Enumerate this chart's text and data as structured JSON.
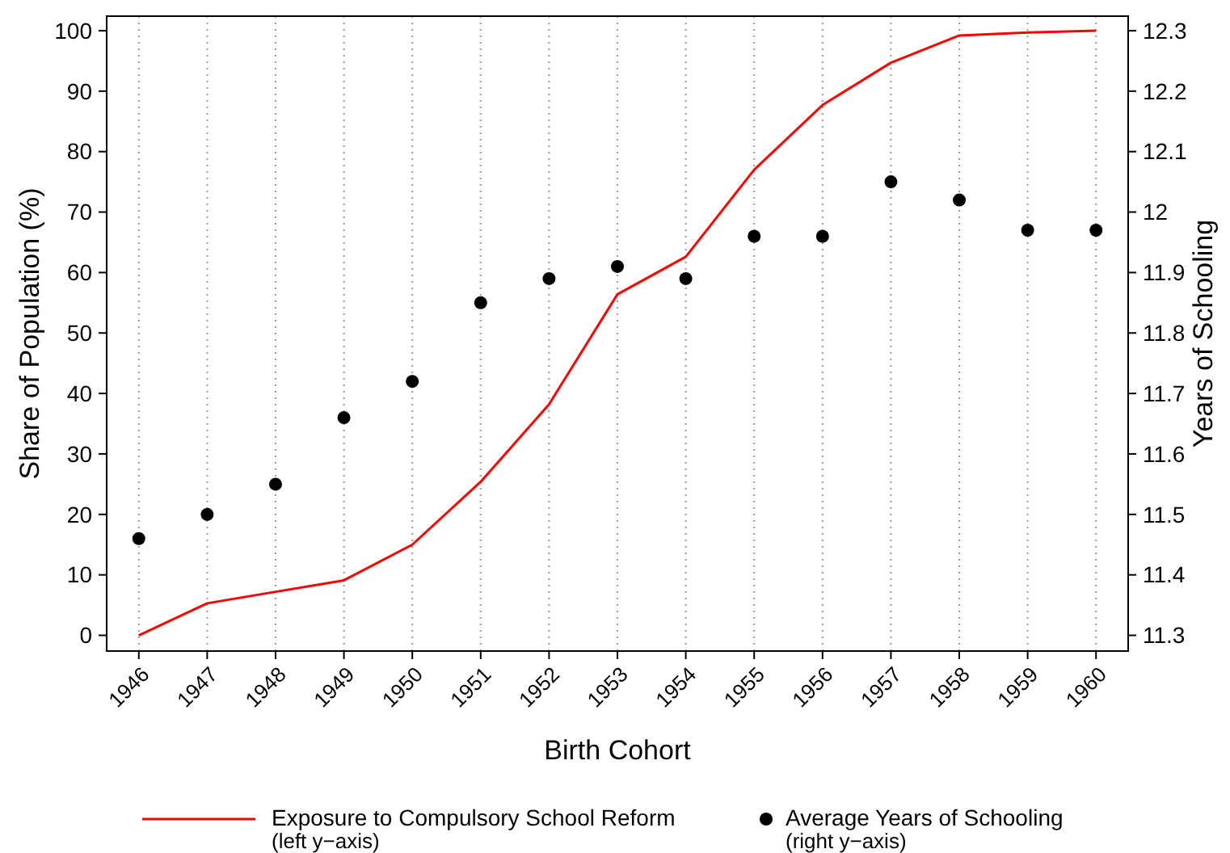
{
  "chart_data": {
    "type": "line",
    "xlabel": "Birth Cohort",
    "ylabel": "Share of Population (%)",
    "y2label": "Years of Schooling",
    "categories": [
      "1946",
      "1947",
      "1948",
      "1949",
      "1950",
      "1951",
      "1952",
      "1953",
      "1954",
      "1955",
      "1956",
      "1957",
      "1958",
      "1959",
      "1960"
    ],
    "series": [
      {
        "name": "Exposure to Compulsory School Reform\n(left y−axis)",
        "color": "#ff0000",
        "values": [
          0,
          5.3,
          7.2,
          9.1,
          15,
          25.4,
          38.2,
          56.4,
          62.6,
          77,
          87.7,
          94.7,
          99.2,
          99.7,
          100
        ]
      },
      {
        "name": "Average Years of Schooling\n(right y−axis)",
        "type": "scatter",
        "axis": "y2",
        "color": "#000000",
        "marker": "circle",
        "values": [
          11.46,
          11.5,
          11.55,
          11.66,
          11.72,
          11.85,
          11.89,
          11.91,
          11.89,
          11.96,
          11.96,
          12.05,
          12.02,
          11.97,
          11.97
        ]
      }
    ],
    "ylim": [
      -2.6,
      102.4
    ],
    "yticks": [
      0,
      10,
      20,
      30,
      40,
      50,
      60,
      70,
      80,
      90,
      100
    ],
    "y2lim": [
      11.274,
      12.324
    ],
    "y2ticks": [
      11.3,
      11.4,
      11.5,
      11.6,
      11.7,
      11.8,
      11.9,
      12,
      12.1,
      12.2,
      12.3
    ],
    "grid": "x",
    "legend": "bottom",
    "line_style": "solid"
  }
}
